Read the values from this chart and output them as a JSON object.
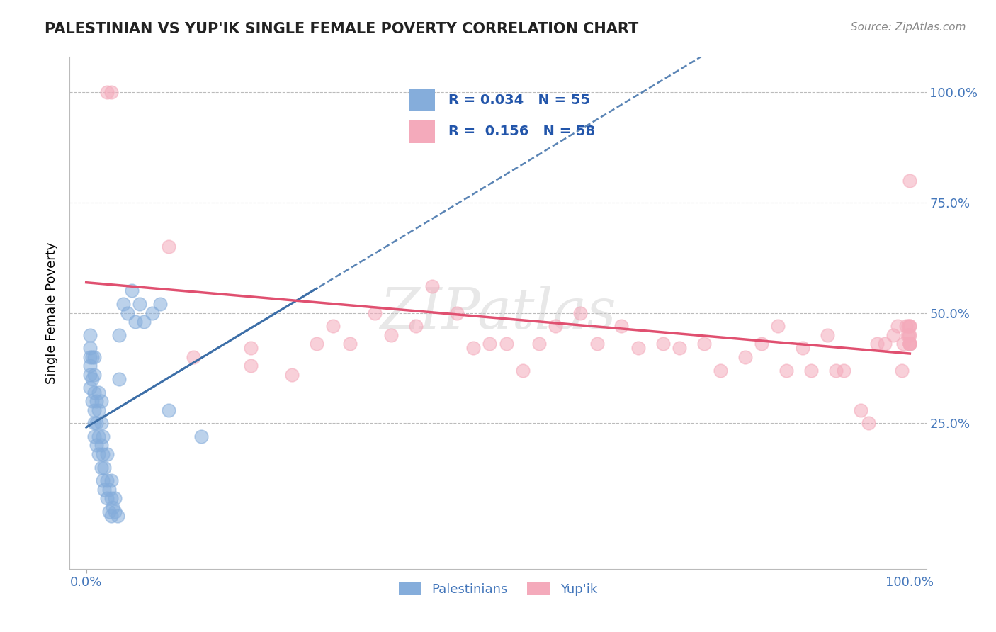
{
  "title": "PALESTINIAN VS YUP'IK SINGLE FEMALE POVERTY CORRELATION CHART",
  "source_text": "Source: ZipAtlas.com",
  "ylabel": "Single Female Poverty",
  "r_palestinian": 0.034,
  "n_palestinian": 55,
  "r_yupik": 0.156,
  "n_yupik": 58,
  "xlim": [
    -0.02,
    1.02
  ],
  "ylim": [
    -0.08,
    1.08
  ],
  "ytick_positions": [
    0.25,
    0.5,
    0.75,
    1.0
  ],
  "ytick_labels": [
    "25.0%",
    "50.0%",
    "75.0%",
    "100.0%"
  ],
  "color_palestinian": "#85ADDB",
  "color_yupik": "#F4AABB",
  "color_trend_palestinian": "#3D6FA8",
  "color_trend_yupik": "#E05070",
  "watermark_color": "#CCCCCC",
  "palestinian_x": [
    0.005,
    0.005,
    0.005,
    0.005,
    0.005,
    0.005,
    0.007,
    0.007,
    0.007,
    0.01,
    0.01,
    0.01,
    0.01,
    0.01,
    0.01,
    0.012,
    0.012,
    0.012,
    0.015,
    0.015,
    0.015,
    0.015,
    0.018,
    0.018,
    0.018,
    0.018,
    0.02,
    0.02,
    0.02,
    0.022,
    0.022,
    0.025,
    0.025,
    0.025,
    0.028,
    0.028,
    0.03,
    0.03,
    0.03,
    0.032,
    0.035,
    0.035,
    0.038,
    0.04,
    0.04,
    0.045,
    0.05,
    0.055,
    0.06,
    0.065,
    0.07,
    0.08,
    0.09,
    0.1,
    0.14
  ],
  "palestinian_y": [
    0.33,
    0.36,
    0.38,
    0.4,
    0.42,
    0.45,
    0.3,
    0.35,
    0.4,
    0.22,
    0.25,
    0.28,
    0.32,
    0.36,
    0.4,
    0.2,
    0.25,
    0.3,
    0.18,
    0.22,
    0.28,
    0.32,
    0.15,
    0.2,
    0.25,
    0.3,
    0.12,
    0.18,
    0.22,
    0.1,
    0.15,
    0.08,
    0.12,
    0.18,
    0.05,
    0.1,
    0.04,
    0.08,
    0.12,
    0.06,
    0.05,
    0.08,
    0.04,
    0.35,
    0.45,
    0.52,
    0.5,
    0.55,
    0.48,
    0.52,
    0.48,
    0.5,
    0.52,
    0.28,
    0.22
  ],
  "yupik_x": [
    0.025,
    0.03,
    0.1,
    0.13,
    0.2,
    0.2,
    0.25,
    0.28,
    0.3,
    0.32,
    0.35,
    0.37,
    0.4,
    0.42,
    0.45,
    0.47,
    0.49,
    0.51,
    0.53,
    0.55,
    0.57,
    0.6,
    0.62,
    0.65,
    0.67,
    0.7,
    0.72,
    0.75,
    0.77,
    0.8,
    0.82,
    0.84,
    0.85,
    0.87,
    0.88,
    0.9,
    0.91,
    0.92,
    0.94,
    0.95,
    0.96,
    0.97,
    0.98,
    0.985,
    0.99,
    0.992,
    0.995,
    0.997,
    0.998,
    0.999,
    1.0,
    1.0,
    1.0,
    1.0,
    1.0,
    1.0,
    1.0,
    1.0
  ],
  "yupik_y": [
    1.0,
    1.0,
    0.65,
    0.4,
    0.38,
    0.42,
    0.36,
    0.43,
    0.47,
    0.43,
    0.5,
    0.45,
    0.47,
    0.56,
    0.5,
    0.42,
    0.43,
    0.43,
    0.37,
    0.43,
    0.47,
    0.5,
    0.43,
    0.47,
    0.42,
    0.43,
    0.42,
    0.43,
    0.37,
    0.4,
    0.43,
    0.47,
    0.37,
    0.42,
    0.37,
    0.45,
    0.37,
    0.37,
    0.28,
    0.25,
    0.43,
    0.43,
    0.45,
    0.47,
    0.37,
    0.43,
    0.47,
    0.45,
    0.47,
    0.45,
    0.43,
    0.43,
    0.47,
    0.45,
    0.43,
    0.47,
    0.8,
    0.43
  ]
}
